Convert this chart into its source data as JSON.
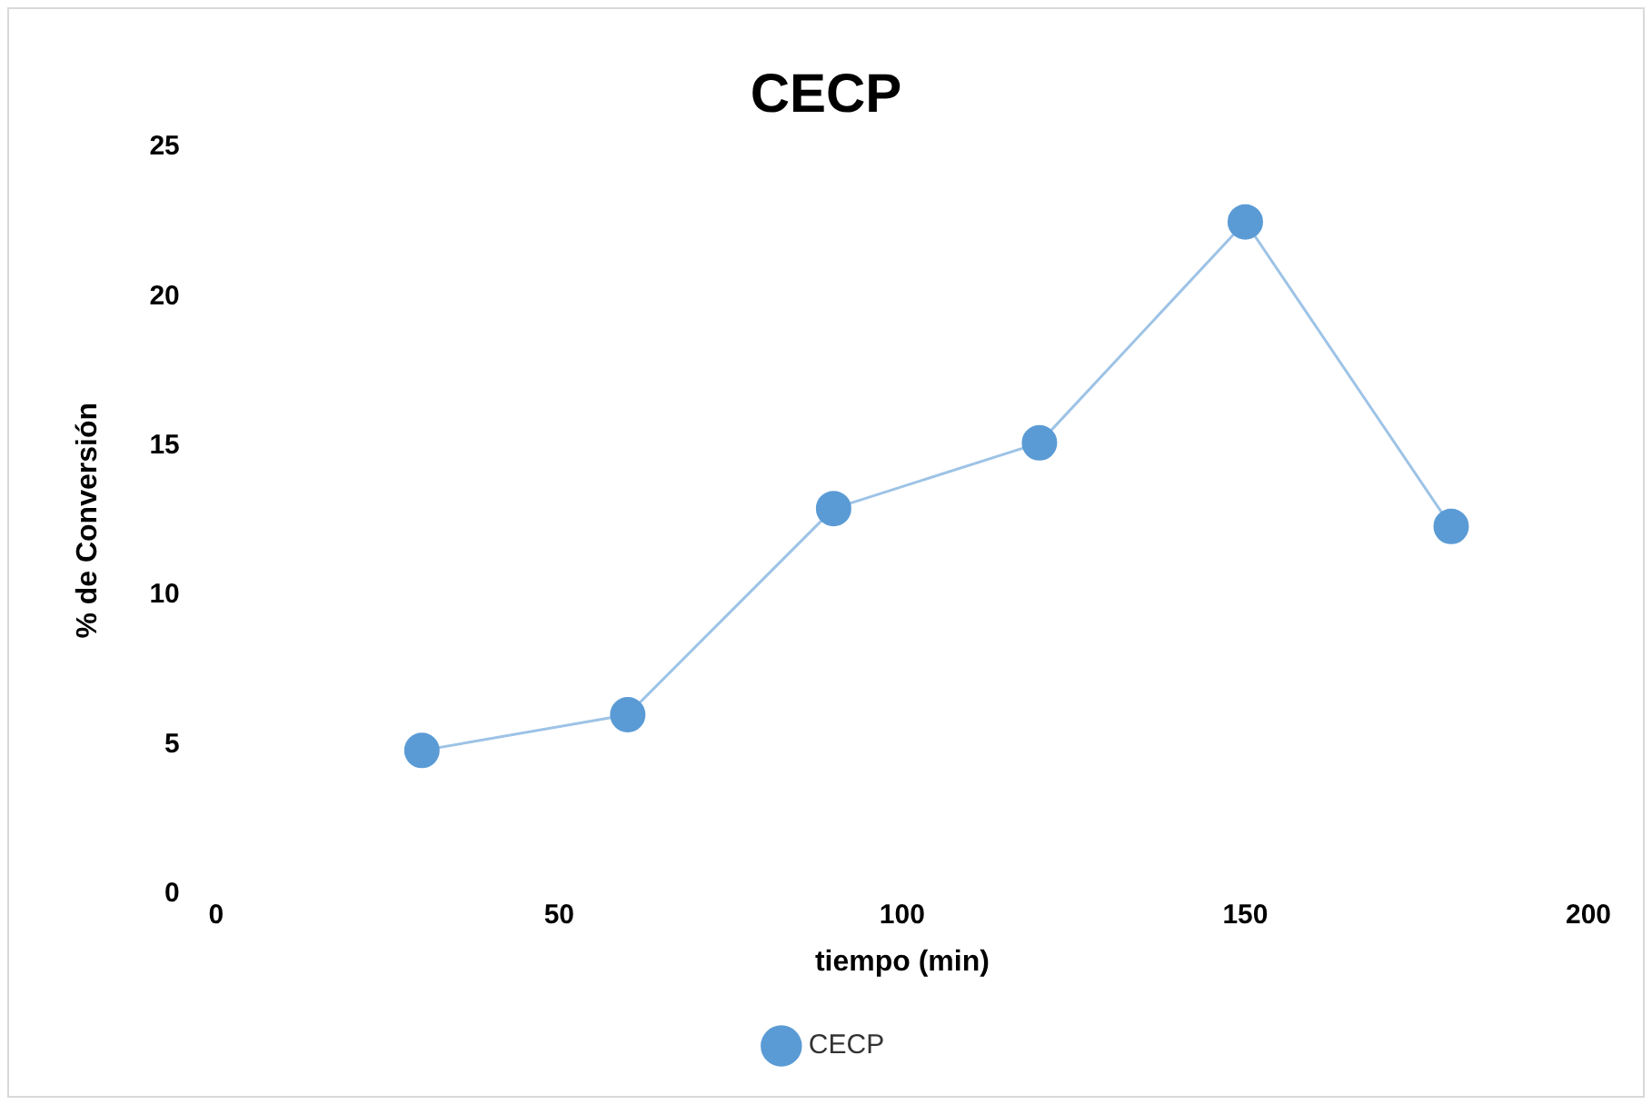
{
  "chart_data": {
    "type": "line",
    "title": "CECP",
    "xlabel": "tiempo (min)",
    "ylabel": "% de Conversión",
    "x": [
      30,
      60,
      90,
      120,
      150,
      180
    ],
    "series": [
      {
        "name": "CECP",
        "color": "#5b9bd5",
        "values": [
          4.8,
          6.0,
          12.9,
          15.1,
          22.5,
          12.3
        ]
      }
    ],
    "xlim": [
      0,
      200
    ],
    "xticks": [
      0,
      50,
      100,
      150,
      200
    ],
    "ylim": [
      0,
      25
    ],
    "yticks": [
      0,
      5,
      10,
      15,
      20,
      25
    ],
    "grid": false,
    "legend": "bottom",
    "marker": "circle",
    "line_style": "solid"
  }
}
